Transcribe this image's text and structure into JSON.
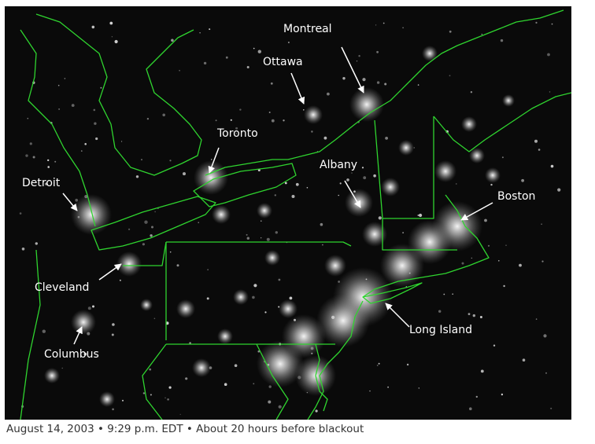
{
  "map": {
    "colors": {
      "background": "#0a0a0a",
      "borders": "#2fd42f",
      "lights": "#ffffff",
      "labels": "#ffffff"
    },
    "labels": {
      "montreal": "Montreal",
      "ottawa": "Ottawa",
      "toronto": "Toronto",
      "albany": "Albany",
      "boston": "Boston",
      "detroit": "Detroit",
      "cleveland": "Cleveland",
      "columbus": "Columbus",
      "long_island": "Long Island"
    }
  },
  "caption": "August 14, 2003 • 9:29 p.m. EDT • About 20 hours before blackout"
}
